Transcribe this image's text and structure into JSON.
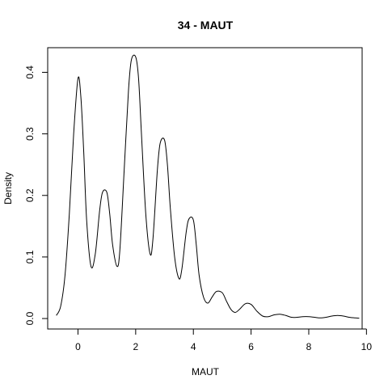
{
  "chart_data": {
    "type": "line",
    "title": "34 - MAUT",
    "xlabel": "MAUT",
    "ylabel": "Density",
    "xlim": [
      -1.05,
      9.85
    ],
    "ylim": [
      -0.017,
      0.44
    ],
    "x_ticks": [
      0,
      2,
      4,
      6,
      8,
      10
    ],
    "x_tick_labels": [
      "0",
      "2",
      "4",
      "6",
      "8",
      "10"
    ],
    "y_ticks": [
      0.0,
      0.1,
      0.2,
      0.3,
      0.4
    ],
    "y_tick_labels": [
      "0.0",
      "0.1",
      "0.2",
      "0.3",
      "0.4"
    ],
    "grid": false,
    "series": [
      {
        "x": [
          -0.75,
          -0.6,
          -0.45,
          -0.3,
          -0.15,
          0.0,
          0.1,
          0.2,
          0.3,
          0.45,
          0.6,
          0.75,
          0.85,
          1.0,
          1.1,
          1.2,
          1.35,
          1.45,
          1.6,
          1.75,
          1.85,
          2.0,
          2.1,
          2.2,
          2.35,
          2.5,
          2.6,
          2.75,
          2.85,
          3.0,
          3.1,
          3.2,
          3.35,
          3.5,
          3.6,
          3.75,
          3.85,
          4.0,
          4.1,
          4.2,
          4.35,
          4.5,
          4.65,
          4.8,
          5.0,
          5.15,
          5.3,
          5.45,
          5.6,
          5.8,
          6.0,
          6.2,
          6.4,
          6.6,
          6.8,
          7.0,
          7.2,
          7.4,
          7.6,
          7.8,
          8.0,
          8.2,
          8.4,
          8.6,
          8.8,
          9.0,
          9.2,
          9.4,
          9.6,
          9.75
        ],
        "y": [
          0.005,
          0.02,
          0.07,
          0.17,
          0.3,
          0.39,
          0.36,
          0.27,
          0.16,
          0.085,
          0.105,
          0.175,
          0.205,
          0.205,
          0.17,
          0.12,
          0.085,
          0.11,
          0.24,
          0.37,
          0.42,
          0.425,
          0.39,
          0.3,
          0.17,
          0.105,
          0.13,
          0.24,
          0.285,
          0.29,
          0.25,
          0.18,
          0.1,
          0.065,
          0.08,
          0.14,
          0.162,
          0.16,
          0.12,
          0.07,
          0.035,
          0.025,
          0.035,
          0.044,
          0.042,
          0.028,
          0.015,
          0.01,
          0.015,
          0.024,
          0.023,
          0.012,
          0.004,
          0.003,
          0.006,
          0.007,
          0.005,
          0.002,
          0.002,
          0.003,
          0.003,
          0.002,
          0.001,
          0.002,
          0.004,
          0.005,
          0.004,
          0.002,
          0.001,
          0.0005
        ]
      }
    ]
  }
}
